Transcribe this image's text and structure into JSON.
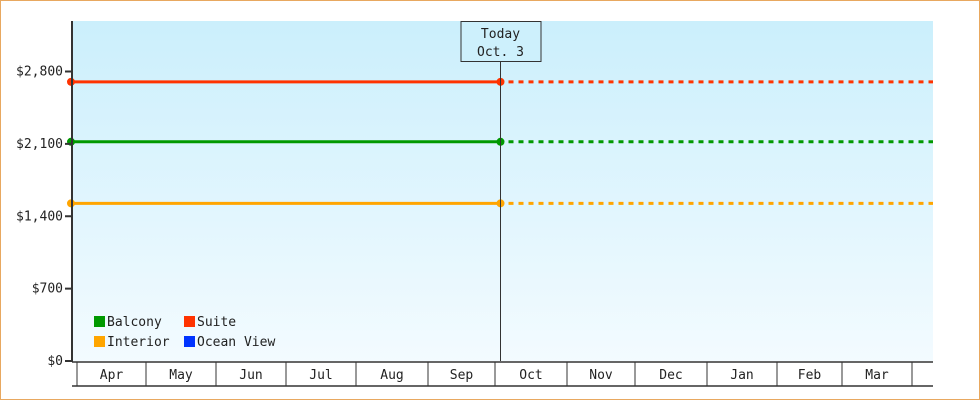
{
  "chart_data": {
    "type": "line",
    "title": "",
    "xlabel": "",
    "ylabel": "",
    "ylim": [
      0,
      3200
    ],
    "yticks": [
      0,
      700,
      1400,
      2100,
      2800
    ],
    "ytick_labels": [
      "$0",
      "$700",
      "$1,400",
      "$2,100",
      "$2,800"
    ],
    "categories": [
      "Apr",
      "May",
      "Jun",
      "Jul",
      "Aug",
      "Sep",
      "Oct",
      "Nov",
      "Dec",
      "Jan",
      "Feb",
      "Mar"
    ],
    "today": {
      "label": "Today",
      "date": "Oct. 3"
    },
    "legend_position": "bottom-left",
    "series": [
      {
        "name": "Balcony",
        "color": "#009900",
        "value": 2120,
        "solid_until": "today",
        "projected_after": "today"
      },
      {
        "name": "Suite",
        "color": "#ff3300",
        "value": 2700,
        "solid_until": "today",
        "projected_after": "today"
      },
      {
        "name": "Interior",
        "color": "#ffa500",
        "value": 1525,
        "solid_until": "today",
        "projected_after": "today"
      },
      {
        "name": "Ocean View",
        "color": "#0033ff",
        "value": null
      }
    ],
    "background_gradient": [
      "#cbeffc",
      "#f3fbff"
    ],
    "grid": false
  }
}
